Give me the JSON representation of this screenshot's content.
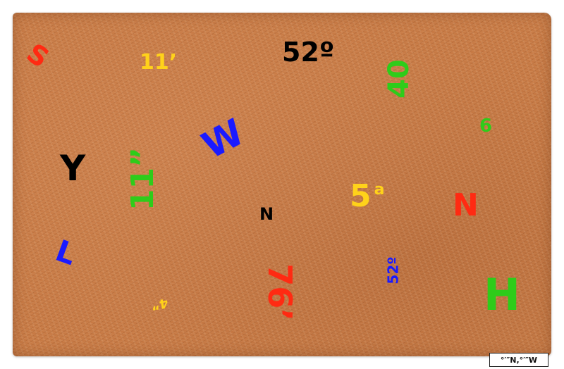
{
  "image": {
    "subject": "coir doormat with scattered letters and numbers",
    "mat_color": "#c77a45"
  },
  "marks": {
    "s": {
      "text": "S",
      "color": "#ff2a12"
    },
    "eleven_prime": {
      "text": "11’",
      "color": "#ffd21a"
    },
    "fifty_two_degree": {
      "text": "52º",
      "color": "#000000"
    },
    "forty": {
      "text": "40",
      "color": "#2ecc1a"
    },
    "six": {
      "text": "6",
      "color": "#2ecc1a"
    },
    "y": {
      "text": "Y",
      "color": "#000000"
    },
    "w": {
      "text": "W",
      "color": "#1a1aff"
    },
    "eleven_double_prime": {
      "text": "11”",
      "color": "#2ecc1a"
    },
    "five_a": {
      "text": "5",
      "superscript": "a",
      "color": "#ffd21a"
    },
    "n_red": {
      "text": "N",
      "color": "#ff2a12"
    },
    "n_black": {
      "text": "N",
      "color": "#000000"
    },
    "l": {
      "text": "L",
      "color": "#1a1aff"
    },
    "fifty_two_degree_small": {
      "text": "52º",
      "color": "#1a1aff"
    },
    "seventy_six": {
      "text": "76’",
      "color": "#ff2a12"
    },
    "four_double_prime": {
      "text": "4”",
      "color": "#ffd21a"
    },
    "h": {
      "text": "H",
      "color": "#2ecc1a"
    }
  },
  "coordinate_label": {
    "text": "°′″N,°′″W"
  }
}
